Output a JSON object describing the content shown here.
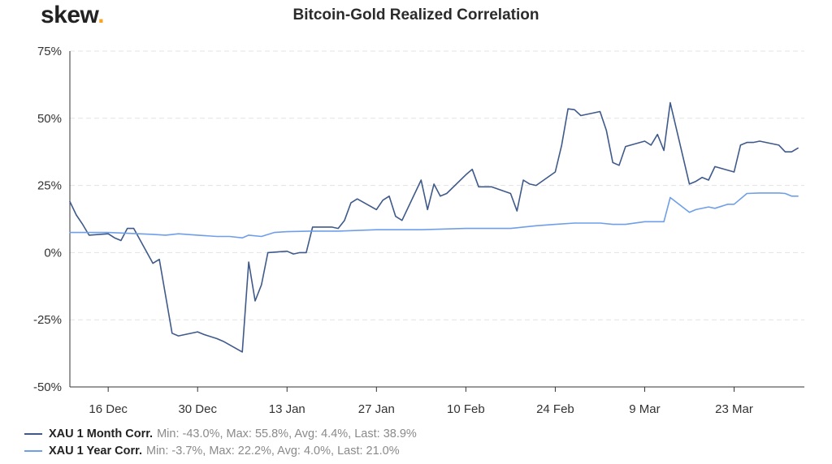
{
  "brand": {
    "name": "skew",
    "dot": "."
  },
  "colors": {
    "series1": "#3f5a8a",
    "series2": "#6f9fe8",
    "grid": "#e3e3e3",
    "axis": "#333333",
    "text": "#333333"
  },
  "chart_data": {
    "type": "line",
    "title": "Bitcoin-Gold Realized Correlation",
    "xlabel": "",
    "ylabel": "",
    "x_start": "2019-12-10",
    "x_end": "2020-04-03",
    "x_ticks": [
      {
        "date": "2019-12-16",
        "label": "16 Dec"
      },
      {
        "date": "2019-12-30",
        "label": "30 Dec"
      },
      {
        "date": "2020-01-13",
        "label": "13 Jan"
      },
      {
        "date": "2020-01-27",
        "label": "27 Jan"
      },
      {
        "date": "2020-02-10",
        "label": "10 Feb"
      },
      {
        "date": "2020-02-24",
        "label": "24 Feb"
      },
      {
        "date": "2020-03-09",
        "label": "9 Mar"
      },
      {
        "date": "2020-03-23",
        "label": "23 Mar"
      }
    ],
    "ylim": [
      -50,
      75
    ],
    "y_ticks": [
      {
        "value": 75,
        "label": "75%"
      },
      {
        "value": 50,
        "label": "50%"
      },
      {
        "value": 25,
        "label": "25%"
      },
      {
        "value": 0,
        "label": "0%"
      },
      {
        "value": -25,
        "label": "-25%"
      },
      {
        "value": -50,
        "label": "-50%"
      }
    ],
    "grid": true,
    "legend_position": "bottom-left",
    "series": [
      {
        "name": "XAU 1 Month Corr.",
        "stats": "Min: -43.0%, Max: 55.8%, Avg: 4.4%, Last: 38.9%",
        "color": "#3f5a8a",
        "points": [
          [
            "2019-12-10",
            19
          ],
          [
            "2019-12-11",
            14
          ],
          [
            "2019-12-12",
            10.5
          ],
          [
            "2019-12-13",
            6.5
          ],
          [
            "2019-12-16",
            7
          ],
          [
            "2019-12-17",
            5.5
          ],
          [
            "2019-12-18",
            4.5
          ],
          [
            "2019-12-19",
            9
          ],
          [
            "2019-12-20",
            9
          ],
          [
            "2019-12-23",
            -4
          ],
          [
            "2019-12-24",
            -2.5
          ],
          [
            "2019-12-26",
            -30
          ],
          [
            "2019-12-27",
            -31
          ],
          [
            "2019-12-30",
            -29.5
          ],
          [
            "2019-12-31",
            -30.5
          ],
          [
            "2020-01-02",
            -32
          ],
          [
            "2020-01-03",
            -33
          ],
          [
            "2020-01-06",
            -37
          ],
          [
            "2020-01-07",
            -3.5
          ],
          [
            "2020-01-08",
            -18
          ],
          [
            "2020-01-09",
            -12
          ],
          [
            "2020-01-10",
            0
          ],
          [
            "2020-01-13",
            0.5
          ],
          [
            "2020-01-14",
            -0.5
          ],
          [
            "2020-01-15",
            0
          ],
          [
            "2020-01-16",
            0
          ],
          [
            "2020-01-17",
            9.5
          ],
          [
            "2020-01-20",
            9.5
          ],
          [
            "2020-01-21",
            9
          ],
          [
            "2020-01-22",
            12
          ],
          [
            "2020-01-23",
            18.5
          ],
          [
            "2020-01-24",
            20
          ],
          [
            "2020-01-27",
            16
          ],
          [
            "2020-01-28",
            19.5
          ],
          [
            "2020-01-29",
            21
          ],
          [
            "2020-01-30",
            13.5
          ],
          [
            "2020-01-31",
            12
          ],
          [
            "2020-02-03",
            27
          ],
          [
            "2020-02-04",
            16
          ],
          [
            "2020-02-05",
            25.5
          ],
          [
            "2020-02-06",
            21
          ],
          [
            "2020-02-07",
            22
          ],
          [
            "2020-02-10",
            29
          ],
          [
            "2020-02-11",
            31
          ],
          [
            "2020-02-12",
            24.5
          ],
          [
            "2020-02-13",
            24.5
          ],
          [
            "2020-02-14",
            24.5
          ],
          [
            "2020-02-17",
            22
          ],
          [
            "2020-02-18",
            15.5
          ],
          [
            "2020-02-19",
            27
          ],
          [
            "2020-02-20",
            25.5
          ],
          [
            "2020-02-21",
            25
          ],
          [
            "2020-02-24",
            30
          ],
          [
            "2020-02-25",
            40
          ],
          [
            "2020-02-26",
            53.5
          ],
          [
            "2020-02-27",
            53.2
          ],
          [
            "2020-02-28",
            51
          ],
          [
            "2020-03-02",
            52.5
          ],
          [
            "2020-03-03",
            45.5
          ],
          [
            "2020-03-04",
            33.5
          ],
          [
            "2020-03-05",
            32.5
          ],
          [
            "2020-03-06",
            39.5
          ],
          [
            "2020-03-09",
            41.5
          ],
          [
            "2020-03-10",
            40
          ],
          [
            "2020-03-11",
            44
          ],
          [
            "2020-03-12",
            38
          ],
          [
            "2020-03-13",
            55.8
          ],
          [
            "2020-03-16",
            25.5
          ],
          [
            "2020-03-17",
            26.5
          ],
          [
            "2020-03-18",
            28
          ],
          [
            "2020-03-19",
            27
          ],
          [
            "2020-03-20",
            32
          ],
          [
            "2020-03-23",
            30
          ],
          [
            "2020-03-24",
            40
          ],
          [
            "2020-03-25",
            41
          ],
          [
            "2020-03-26",
            41
          ],
          [
            "2020-03-27",
            41.5
          ],
          [
            "2020-03-30",
            40
          ],
          [
            "2020-03-31",
            37.5
          ],
          [
            "2020-04-01",
            37.5
          ],
          [
            "2020-04-02",
            38.9
          ]
        ]
      },
      {
        "name": "XAU 1 Year Corr.",
        "stats": "Min: -3.7%, Max: 22.2%, Avg: 4.0%, Last: 21.0%",
        "color": "#6f9fe8",
        "points": [
          [
            "2019-12-10",
            7.5
          ],
          [
            "2019-12-13",
            7.5
          ],
          [
            "2019-12-16",
            7.5
          ],
          [
            "2019-12-19",
            7.2
          ],
          [
            "2019-12-23",
            6.8
          ],
          [
            "2019-12-25",
            6.5
          ],
          [
            "2019-12-27",
            7
          ],
          [
            "2019-12-30",
            6.5
          ],
          [
            "2020-01-02",
            6
          ],
          [
            "2020-01-04",
            6
          ],
          [
            "2020-01-06",
            5.5
          ],
          [
            "2020-01-07",
            6.5
          ],
          [
            "2020-01-09",
            6
          ],
          [
            "2020-01-11",
            7.5
          ],
          [
            "2020-01-13",
            7.8
          ],
          [
            "2020-01-17",
            8
          ],
          [
            "2020-01-21",
            8
          ],
          [
            "2020-01-27",
            8.5
          ],
          [
            "2020-02-03",
            8.5
          ],
          [
            "2020-02-10",
            9
          ],
          [
            "2020-02-17",
            9
          ],
          [
            "2020-02-19",
            9.5
          ],
          [
            "2020-02-21",
            10
          ],
          [
            "2020-02-24",
            10.5
          ],
          [
            "2020-02-27",
            11
          ],
          [
            "2020-03-02",
            11
          ],
          [
            "2020-03-04",
            10.5
          ],
          [
            "2020-03-06",
            10.5
          ],
          [
            "2020-03-09",
            11.5
          ],
          [
            "2020-03-12",
            11.5
          ],
          [
            "2020-03-13",
            20.5
          ],
          [
            "2020-03-16",
            15
          ],
          [
            "2020-03-17",
            16
          ],
          [
            "2020-03-19",
            17
          ],
          [
            "2020-03-20",
            16.5
          ],
          [
            "2020-03-22",
            18
          ],
          [
            "2020-03-23",
            18
          ],
          [
            "2020-03-25",
            22
          ],
          [
            "2020-03-27",
            22.2
          ],
          [
            "2020-03-30",
            22.2
          ],
          [
            "2020-03-31",
            22
          ],
          [
            "2020-04-01",
            21
          ],
          [
            "2020-04-02",
            21
          ]
        ]
      }
    ]
  }
}
